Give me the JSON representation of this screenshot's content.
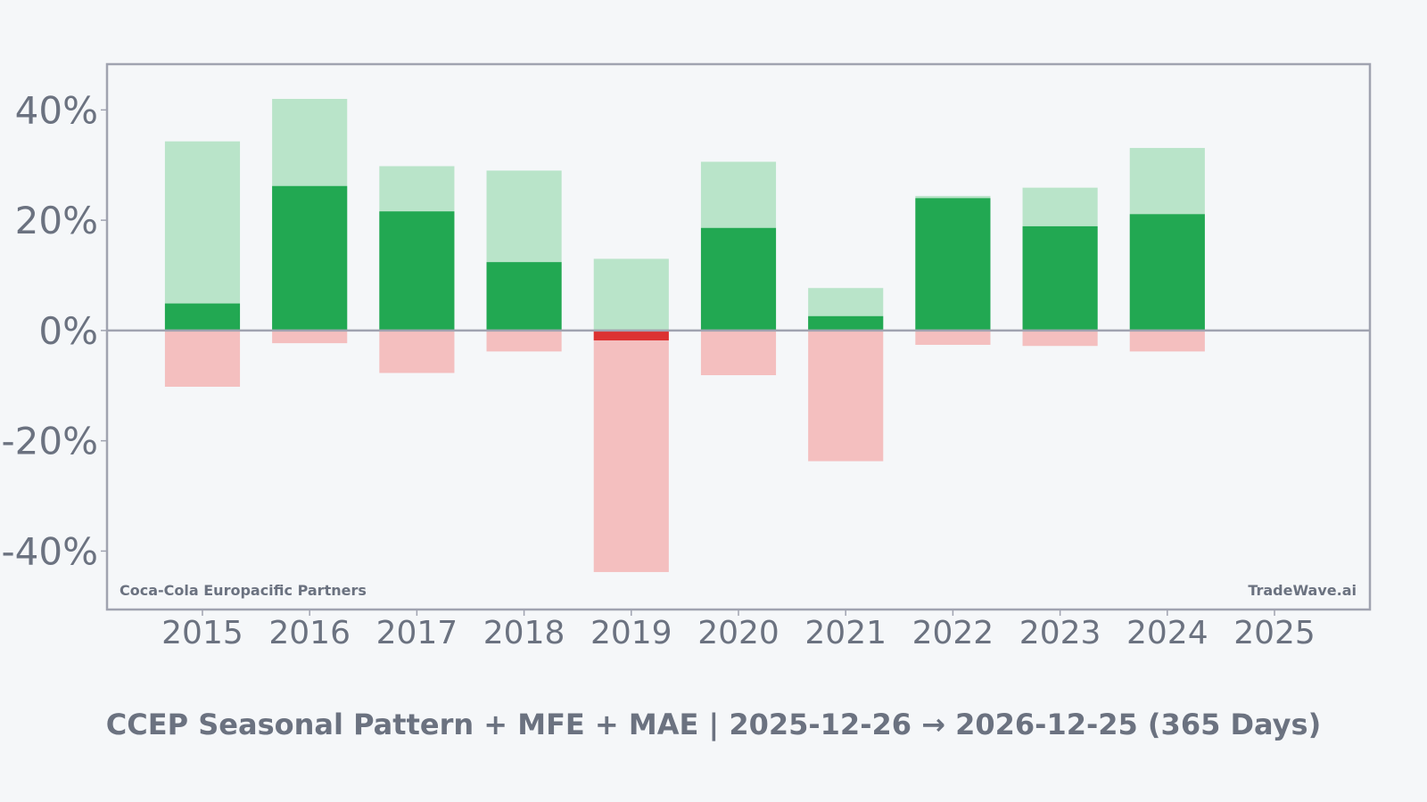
{
  "chart_data": {
    "type": "bar",
    "title": "CCEP Seasonal Pattern + MFE + MAE | 2025-12-26 → 2026-12-25 (365 Days)",
    "watermark_left": "Coca-Cola Europacific Partners",
    "watermark_right": "TradeWave.ai",
    "categories": [
      "2015",
      "2016",
      "2017",
      "2018",
      "2019",
      "2020",
      "2021",
      "2022",
      "2023",
      "2024",
      "2025"
    ],
    "series": [
      {
        "key": "mfe",
        "values": [
          34.3,
          42.0,
          29.8,
          29.0,
          13.0,
          30.6,
          7.7,
          24.4,
          25.9,
          33.1,
          null
        ]
      },
      {
        "key": "return",
        "values": [
          4.9,
          26.2,
          21.6,
          12.4,
          -1.8,
          18.6,
          2.6,
          24.0,
          18.9,
          21.1,
          null
        ]
      },
      {
        "key": "mae",
        "values": [
          -10.2,
          -2.3,
          -7.7,
          -3.8,
          -43.8,
          -8.1,
          -23.7,
          -2.6,
          -2.8,
          -3.8,
          null
        ]
      }
    ],
    "yticks": [
      40,
      20,
      0,
      -20,
      -40
    ],
    "ytick_labels": [
      "40%",
      "20%",
      "0%",
      "-20%",
      "-40%"
    ],
    "ylim": [
      -50.6,
      48.3
    ],
    "xlim": [
      2014.11,
      2025.89
    ],
    "grid": false,
    "colors": {
      "return_positive": "#22a852",
      "return_negative": "#dc3232",
      "mfe": "#b9e4c9",
      "mae": "#f4bfbf",
      "axis": "#a0a3b0",
      "text": "#6b7280"
    }
  }
}
